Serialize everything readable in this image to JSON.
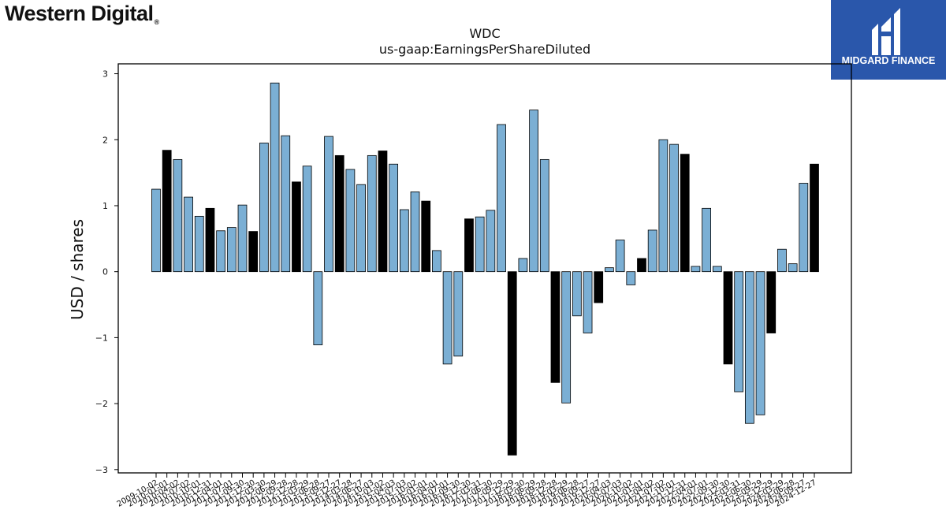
{
  "branding": {
    "left_logo_text": "Western Digital",
    "right_logo_text": "MIDGARD FINANCE",
    "right_logo_bg": "#2a57ab"
  },
  "chart_data": {
    "type": "bar",
    "title": "WDC",
    "subtitle": "us-gaap:EarningsPerShareDiluted",
    "xlabel": "",
    "ylabel": "USD / shares",
    "ylim": [
      -3.05,
      3.15
    ],
    "yticks": [
      -3,
      -2,
      -1,
      0,
      1,
      2,
      3
    ],
    "grid": false,
    "legend": "none",
    "colors": {
      "quarter": "#7bafd4",
      "fiscal_year": "#000000",
      "edge": "#000000"
    },
    "series": [
      {
        "categories": [
          "2009-10-02",
          "2010-01-01",
          "2010-04-02",
          "2010-07-02",
          "2010-10-01",
          "2010-12-31",
          "2011-04-01",
          "2011-07-01",
          "2011-09-30",
          "2011-12-30",
          "2012-03-30",
          "2012-06-29",
          "2012-09-28",
          "2012-12-28",
          "2013-03-29",
          "2013-06-28",
          "2013-09-27",
          "2013-12-27",
          "2014-03-28",
          "2014-06-27",
          "2014-10-03",
          "2015-01-02",
          "2015-04-03",
          "2015-07-03",
          "2015-10-02",
          "2016-01-01",
          "2016-04-01",
          "2016-07-01",
          "2016-09-30",
          "2016-12-30",
          "2017-03-31",
          "2017-06-30",
          "2017-09-29",
          "2017-12-29",
          "2018-03-30",
          "2018-06-29",
          "2018-09-28",
          "2018-12-28",
          "2019-03-29",
          "2019-06-28",
          "2019-09-27",
          "2019-12-27",
          "2020-04-03",
          "2020-07-03",
          "2020-10-02",
          "2021-01-01",
          "2021-04-02",
          "2021-07-02",
          "2021-10-01",
          "2021-12-31",
          "2022-04-01",
          "2022-07-01",
          "2022-09-30",
          "2022-12-30",
          "2023-03-31",
          "2023-06-30",
          "2023-09-29",
          "2023-12-29",
          "2024-03-29",
          "2024-06-28",
          "2024-09-27",
          "2024-12-27"
        ],
        "values": [
          1.25,
          1.84,
          1.7,
          1.13,
          0.84,
          0.96,
          0.62,
          0.67,
          1.01,
          0.61,
          1.95,
          2.86,
          2.06,
          1.36,
          1.6,
          -1.11,
          2.05,
          1.76,
          1.55,
          1.32,
          1.76,
          1.83,
          1.63,
          0.94,
          1.21,
          1.07,
          0.32,
          -1.4,
          -1.28,
          0.8,
          0.83,
          0.93,
          2.23,
          -2.78,
          0.2,
          2.45,
          1.7,
          -1.68,
          -1.99,
          -0.67,
          -0.93,
          -0.47,
          0.06,
          0.48,
          -0.2,
          0.2,
          0.63,
          2.0,
          1.93,
          1.78,
          0.08,
          0.96,
          0.08,
          -1.4,
          -1.82,
          -2.3,
          -2.17,
          -0.93,
          0.34,
          0.12,
          1.34,
          1.63
        ],
        "kinds": [
          "q",
          "fy",
          "q",
          "q",
          "q",
          "fy",
          "q",
          "q",
          "q",
          "fy",
          "q",
          "q",
          "q",
          "fy",
          "q",
          "q",
          "q",
          "fy",
          "q",
          "q",
          "q",
          "fy",
          "q",
          "q",
          "q",
          "fy",
          "q",
          "q",
          "q",
          "fy",
          "q",
          "q",
          "q",
          "fy",
          "q",
          "q",
          "q",
          "fy",
          "q",
          "q",
          "q",
          "fy",
          "q",
          "q",
          "q",
          "fy",
          "q",
          "q",
          "q",
          "fy",
          "q",
          "q",
          "q",
          "fy",
          "q",
          "q",
          "q",
          "fy",
          "q",
          "q",
          "q",
          "fy"
        ]
      }
    ],
    "xtick_labels": [
      "2009-10-02",
      "2010-01-01",
      "2010-04-02",
      "2010-07-02",
      "2010-10-01",
      "2010-12-31",
      "2011-04-01",
      "2011-07-01",
      "2011-09-30",
      "2011-12-30",
      "2012-03-30",
      "2012-06-29",
      "2012-09-28",
      "2012-12-28",
      "2013-03-29",
      "2013-06-28",
      "2013-09-27",
      "2013-12-27",
      "2014-03-28",
      "2014-06-27",
      "2014-10-03",
      "2015-01-02",
      "2015-04-03",
      "2015-07-03",
      "2015-10-02",
      "2016-01-01",
      "2016-04-01",
      "2016-07-01",
      "2016-09-30",
      "2016-12-30",
      "2017-03-31",
      "2017-06-30",
      "2017-09-29",
      "2017-12-29",
      "2018-03-30",
      "2018-06-29",
      "2018-09-28",
      "2018-12-28",
      "2019-03-29",
      "2019-06-28",
      "2019-09-27",
      "2019-12-27",
      "2020-04-03",
      "2020-07-03",
      "2020-10-02",
      "2021-01-01",
      "2021-04-02",
      "2021-07-02",
      "2021-10-01",
      "2021-12-31",
      "2022-04-01",
      "2022-07-01",
      "2022-09-30",
      "2022-12-30",
      "2023-03-31",
      "2023-06-30",
      "2023-09-29",
      "2023-12-29",
      "2024-03-29",
      "2024-06-28",
      "2024-09-27",
      "2024-12-27"
    ]
  }
}
